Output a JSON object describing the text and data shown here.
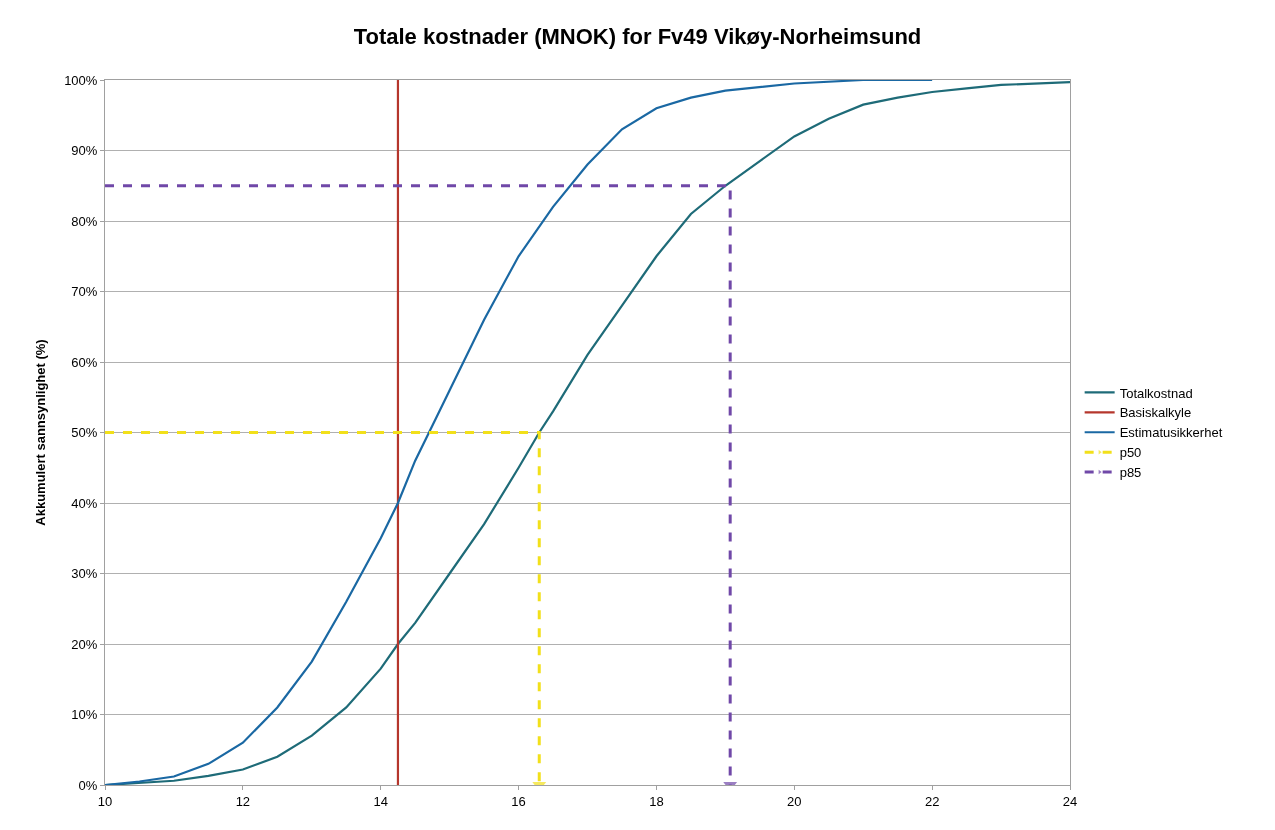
{
  "chart_data": {
    "type": "line",
    "title": "Totale kostnader (MNOK) for Fv49 Vikøy-Norheimsund",
    "ylabel": "Akkumulert sannsynlighet (%)",
    "series": [
      {
        "name": "Totalkostnad",
        "color": "#1e6b78",
        "x": [
          10,
          11,
          11.5,
          12,
          12.5,
          13,
          13.5,
          14,
          14.25,
          14.5,
          15,
          15.5,
          16,
          16.3,
          16.5,
          17,
          17.5,
          18,
          18.5,
          19,
          19.5,
          20,
          20.5,
          21,
          21.5,
          22,
          22.5,
          23,
          24
        ],
        "values": [
          0,
          0.6,
          1.3,
          2.2,
          4,
          7,
          11,
          16.5,
          20,
          23,
          30,
          37,
          45,
          50,
          53,
          61,
          68,
          75,
          81,
          85,
          88.5,
          92,
          94.5,
          96.5,
          97.5,
          98.3,
          98.8,
          99.3,
          99.7
        ]
      },
      {
        "name": "Basiskalkyle",
        "color": "#b5362c",
        "x": [
          14.25,
          14.25
        ],
        "values": [
          0,
          100
        ]
      },
      {
        "name": "Estimatusikkerhet",
        "color": "#1a68a3",
        "x": [
          10,
          10.5,
          11,
          11.5,
          12,
          12.5,
          13,
          13.5,
          14,
          14.25,
          14.5,
          14.8,
          15,
          15.5,
          16,
          16.5,
          17,
          17.5,
          18,
          18.5,
          19,
          20,
          21,
          22
        ],
        "values": [
          0,
          0.5,
          1.2,
          3,
          6,
          11,
          17.5,
          26,
          35,
          40,
          46,
          52,
          56,
          66,
          75,
          82,
          88,
          93,
          96,
          97.5,
          98.5,
          99.5,
          100,
          100
        ]
      },
      {
        "name": "p50",
        "color": "#f2e01a",
        "line_style": "dashed",
        "x": [
          10,
          16.3,
          16.3
        ],
        "values": [
          50,
          50,
          0
        ]
      },
      {
        "name": "p85",
        "color": "#7048a8",
        "line_style": "dashed",
        "x": [
          10,
          19.07,
          19.07
        ],
        "values": [
          85,
          85,
          0
        ]
      }
    ],
    "xlim": [
      10,
      24
    ],
    "xticks": [
      10,
      12,
      14,
      16,
      18,
      20,
      22,
      24
    ],
    "ylim": [
      0,
      100
    ],
    "yticks": [
      {
        "value": 0,
        "label": "0%"
      },
      {
        "value": 10,
        "label": "10%"
      },
      {
        "value": 20,
        "label": "20%"
      },
      {
        "value": 30,
        "label": "30%"
      },
      {
        "value": 40,
        "label": "40%"
      },
      {
        "value": 50,
        "label": "50%"
      },
      {
        "value": 60,
        "label": "60%"
      },
      {
        "value": 70,
        "label": "70%"
      },
      {
        "value": 80,
        "label": "80%"
      },
      {
        "value": 90,
        "label": "90%"
      },
      {
        "value": 100,
        "label": "100%"
      }
    ],
    "grid": "y",
    "legend": "right",
    "marker": "none"
  }
}
